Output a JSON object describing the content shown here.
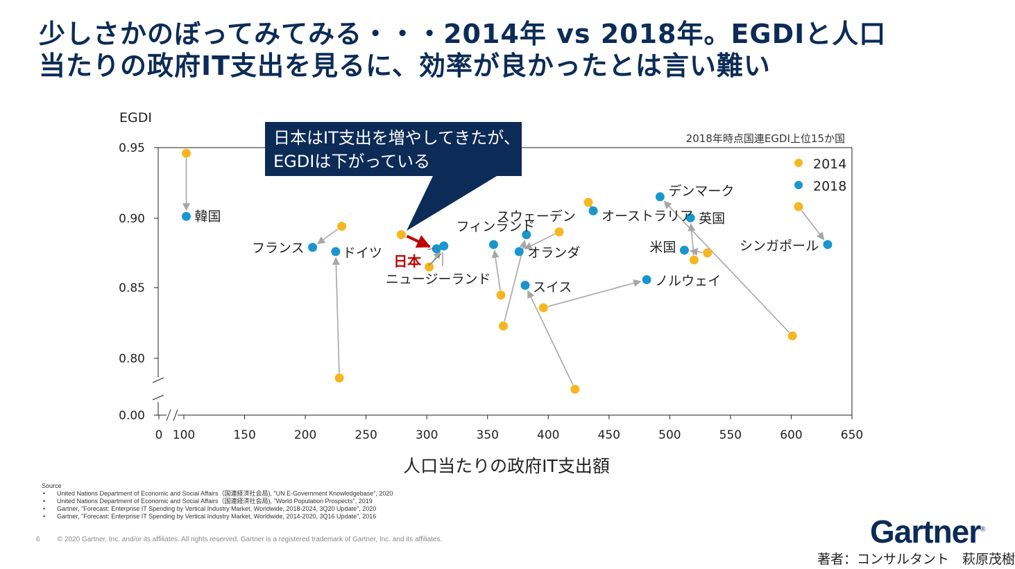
{
  "title": {
    "line1": "少しさかのぼってみてみる・・・2014年 vs 2018年。EGDIと人口",
    "line2": "当たりの政府IT支出を見るに、効率が良かったとは言い難い"
  },
  "callout": {
    "line1": "日本はIT支出を増やしてきたが、",
    "line2": "EGDIは下がっている"
  },
  "colors": {
    "y2014": "#f6b61f",
    "y2018": "#1a96cf",
    "japan": "#c00000",
    "navy": "#0c2b57",
    "arrow": "#a6a6a6"
  },
  "chart_data": {
    "type": "scatter",
    "title": "",
    "subtitle": "2018年時点国連EGDI上位15か国",
    "xlabel": "人口当たりの政府IT支出額",
    "ylabel": "EGDI",
    "xlim": [
      0,
      650
    ],
    "x_ticks": [
      "0",
      "100",
      "150",
      "200",
      "250",
      "300",
      "350",
      "400",
      "450",
      "500",
      "550",
      "600",
      "650"
    ],
    "y_ticks": [
      "0.00",
      "0.80",
      "0.85",
      "0.90",
      "0.95"
    ],
    "axis_break": {
      "x": "0–100",
      "y": "0.00–0.78"
    },
    "legend": {
      "entries": [
        "2014",
        "2018"
      ],
      "placement": "top-right"
    },
    "series": [
      {
        "name": "2014",
        "points": [
          {
            "country": "韓国",
            "x": 102,
            "y": 0.946
          },
          {
            "country": "フランス",
            "x": 230,
            "y": 0.894
          },
          {
            "country": "ドイツ",
            "x": 228,
            "y": 0.786
          },
          {
            "country": "日本",
            "x": 279,
            "y": 0.888
          },
          {
            "country": "ニュージーランド",
            "x": 302,
            "y": 0.865
          },
          {
            "country": "フィンランド",
            "x": 361,
            "y": 0.845
          },
          {
            "country": "スウェーデン",
            "x": 363,
            "y": 0.823
          },
          {
            "country": "オランダ",
            "x": 409,
            "y": 0.89
          },
          {
            "country": "スイス",
            "x": 422,
            "y": 0.778
          },
          {
            "country": "ノルウェイ",
            "x": 396,
            "y": 0.836
          },
          {
            "country": "オーストラリア",
            "x": 433,
            "y": 0.911
          },
          {
            "country": "英国",
            "x": 520,
            "y": 0.87
          },
          {
            "country": "米国",
            "x": 531,
            "y": 0.875
          },
          {
            "country": "デンマーク",
            "x": 601,
            "y": 0.816
          },
          {
            "country": "シンガポール",
            "x": 606,
            "y": 0.908
          }
        ]
      },
      {
        "name": "2018",
        "points": [
          {
            "country": "韓国",
            "x": 102,
            "y": 0.901
          },
          {
            "country": "フランス",
            "x": 206,
            "y": 0.879
          },
          {
            "country": "ドイツ",
            "x": 225,
            "y": 0.876
          },
          {
            "country": "日本",
            "x": 308,
            "y": 0.878
          },
          {
            "country": "ニュージーランド",
            "x": 314,
            "y": 0.88
          },
          {
            "country": "フィンランド",
            "x": 355,
            "y": 0.881
          },
          {
            "country": "スウェーデン",
            "x": 382,
            "y": 0.888
          },
          {
            "country": "オランダ",
            "x": 376,
            "y": 0.876
          },
          {
            "country": "スイス",
            "x": 381,
            "y": 0.852
          },
          {
            "country": "ノルウェイ",
            "x": 481,
            "y": 0.856
          },
          {
            "country": "オーストラリア",
            "x": 437,
            "y": 0.905
          },
          {
            "country": "英国",
            "x": 517,
            "y": 0.9
          },
          {
            "country": "米国",
            "x": 512,
            "y": 0.877
          },
          {
            "country": "デンマーク",
            "x": 492,
            "y": 0.915
          },
          {
            "country": "シンガポール",
            "x": 630,
            "y": 0.881
          }
        ]
      }
    ]
  },
  "sources": {
    "heading": "Source",
    "items": [
      "United Nations Department of Economic and Social Affairs（国連経済社会局), \"UN E-Government Knowledgebase\", 2020",
      "United Nations Department of Economic and Social Affairs（国連経済社会局), \"World Population Prospects\", 2019",
      "Gartner, \"Forecast: Enterprise IT Spending by Vertical Industry Market, Worldwide, 2018-2024, 3Q20 Update\", 2020",
      "Gartner, \"Forecast: Enterprise IT Spending by Vertical Industry Market, Worldwide, 2014-2020, 3Q16 Update\", 2016"
    ]
  },
  "footer": {
    "page": "6",
    "copyright": "© 2020 Gartner, Inc. and/or its affiliates. All rights reserved. Gartner is a registered trademark of Gartner, Inc. and its affiliates."
  },
  "logo": {
    "text": "Gartner",
    "mark": "®"
  },
  "author": "著者：コンサルタント　萩原茂樹"
}
